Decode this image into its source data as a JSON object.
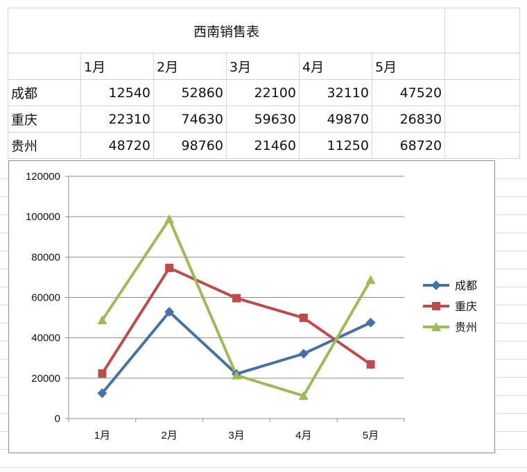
{
  "sheet": {
    "title": "西南销售表",
    "months": [
      "1月",
      "2月",
      "3月",
      "4月",
      "5月"
    ],
    "rows": [
      {
        "city": "成都",
        "values": [
          12540,
          52860,
          22100,
          32110,
          47520
        ]
      },
      {
        "city": "重庆",
        "values": [
          22310,
          74630,
          59630,
          49870,
          26830
        ]
      },
      {
        "city": "贵州",
        "values": [
          48720,
          98760,
          21460,
          11250,
          68720
        ]
      }
    ]
  },
  "chart_data": {
    "type": "line",
    "categories": [
      "1月",
      "2月",
      "3月",
      "4月",
      "5月"
    ],
    "series": [
      {
        "name": "成都",
        "values": [
          12540,
          52860,
          22100,
          32110,
          47520
        ],
        "color": "#4472a8",
        "marker": "diamond"
      },
      {
        "name": "重庆",
        "values": [
          22310,
          74630,
          59630,
          49870,
          26830
        ],
        "color": "#be4b48",
        "marker": "square"
      },
      {
        "name": "贵州",
        "values": [
          48720,
          98760,
          21460,
          11250,
          68720
        ],
        "color": "#9bbb59",
        "marker": "triangle"
      }
    ],
    "ylim": [
      0,
      120000
    ],
    "yticks": [
      "0",
      "20000",
      "40000",
      "60000",
      "80000",
      "100000",
      "120000"
    ],
    "grid": true,
    "legend_position": "right"
  }
}
